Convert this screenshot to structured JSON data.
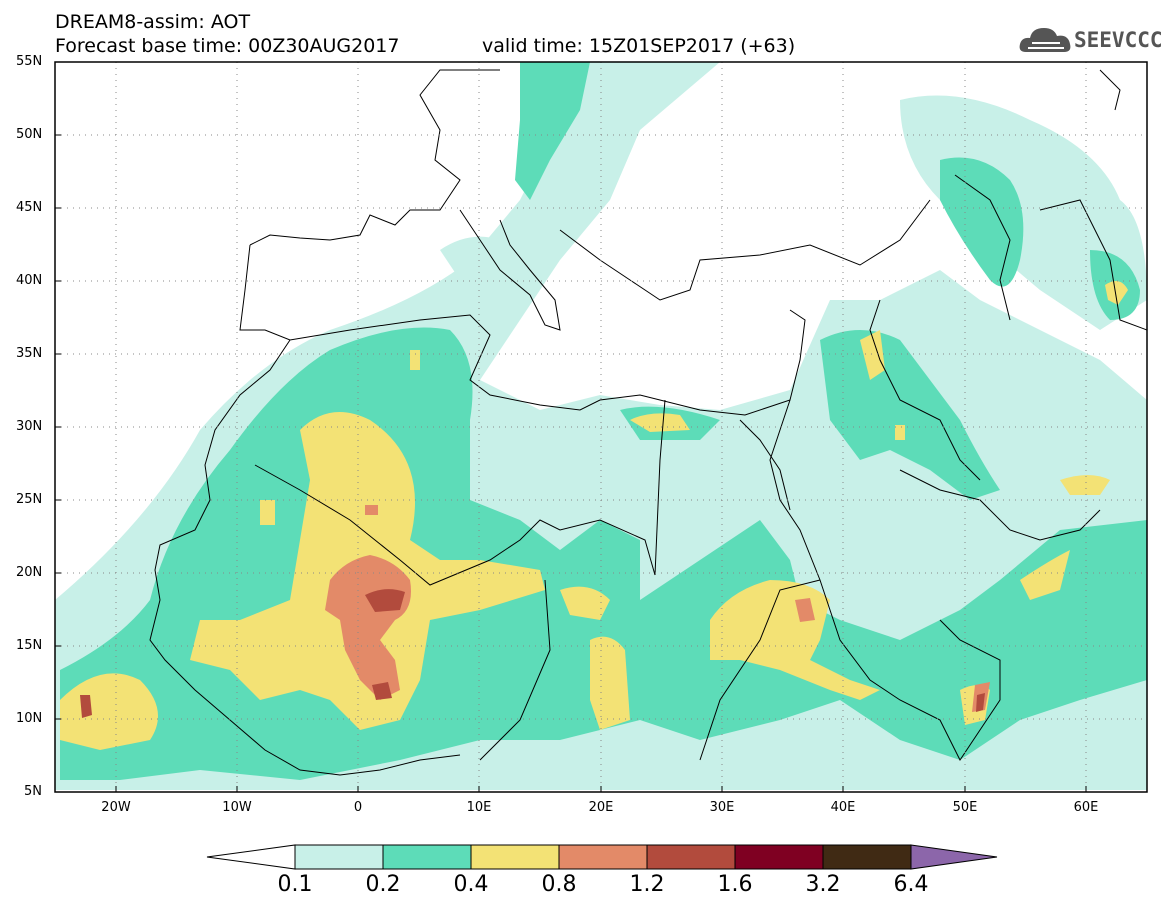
{
  "header": {
    "line1": "DREAM8-assim: AOT",
    "line2": "Forecast base time: 00Z30AUG2017",
    "line3": "valid time: 15Z01SEP2017 (+63)"
  },
  "logo": {
    "text": "SEEVCCC",
    "icon": "cloud-logo-icon"
  },
  "map": {
    "lat_range": [
      5,
      55
    ],
    "lon_range": [
      -25,
      65
    ],
    "lat_labels": [
      "55N",
      "50N",
      "45N",
      "40N",
      "35N",
      "30N",
      "25N",
      "20N",
      "15N",
      "10N",
      "5N"
    ],
    "lon_labels": [
      "20W",
      "10W",
      "0",
      "10E",
      "20E",
      "30E",
      "40E",
      "50E",
      "60E"
    ],
    "grid": true
  },
  "colorbar": {
    "labels": [
      "0.1",
      "0.2",
      "0.4",
      "0.8",
      "1.2",
      "1.6",
      "3.2",
      "6.4"
    ],
    "colors": [
      "#ffffff",
      "#c8f0e8",
      "#5ddcb8",
      "#f3e275",
      "#e38a68",
      "#b24b3d",
      "#7f0022",
      "#402a14",
      "#8c66aa"
    ]
  }
}
